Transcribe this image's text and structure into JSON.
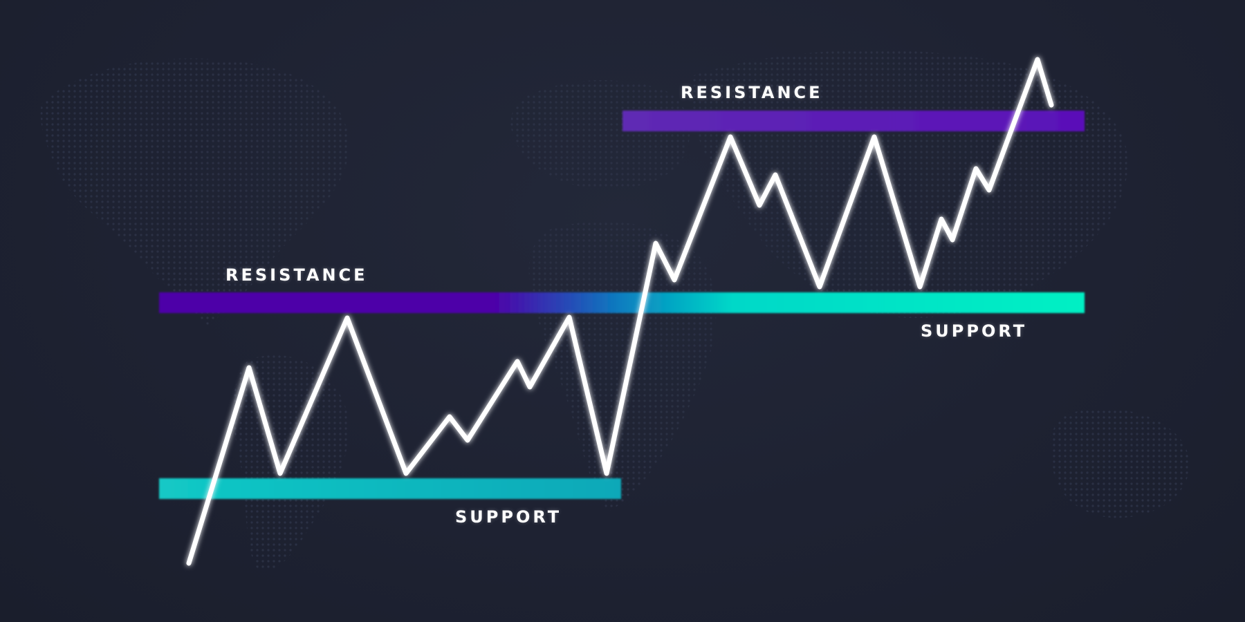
{
  "diagram": {
    "type": "support-resistance",
    "labels": {
      "resistance_left": "RESISTANCE",
      "support_left": "SUPPORT",
      "resistance_right": "RESISTANCE",
      "support_right": "SUPPORT"
    },
    "colors": {
      "background": "#1e2232",
      "resistance": "#4e00a8",
      "resistance_top": "#5a1fb0",
      "support_left": "#0ab5c2",
      "support_right": "#00f0c4",
      "price_line": "#ffffff"
    }
  }
}
